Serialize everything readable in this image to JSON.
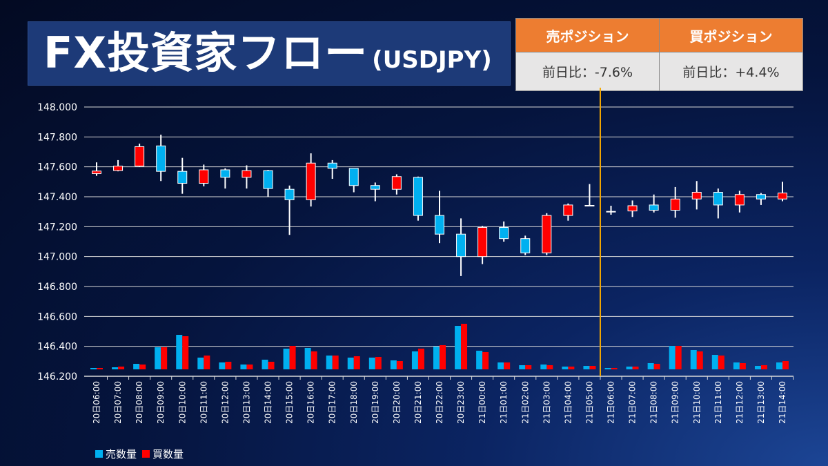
{
  "title": {
    "main": "FX投資家フロー",
    "sub": "(USDJPY)"
  },
  "position_table": {
    "sell": {
      "header": "売ポジション",
      "value": "前日比：-7.6%"
    },
    "buy": {
      "header": "買ポジション",
      "value": "前日比：+4.4%"
    }
  },
  "colors": {
    "up": "#ff0000",
    "down": "#00b0f0",
    "sell_volume": "#00b0f0",
    "buy_volume": "#ff0000",
    "divider": "#f5a800",
    "header": "#ed7d31"
  },
  "chart_data": {
    "type": "candlestick",
    "ylim": [
      146.2,
      148.0
    ],
    "yticks": [
      "148.000",
      "147.800",
      "147.600",
      "147.400",
      "147.200",
      "147.000",
      "146.800",
      "146.600",
      "146.400",
      "146.200"
    ],
    "grid": true,
    "divider_between": [
      "21日05:00",
      "21日06:00"
    ],
    "categories": [
      "20日06:00",
      "20日07:00",
      "20日08:00",
      "20日09:00",
      "20日10:00",
      "20日11:00",
      "20日12:00",
      "20日13:00",
      "20日14:00",
      "20日15:00",
      "20日16:00",
      "20日17:00",
      "20日18:00",
      "20日19:00",
      "20日20:00",
      "20日21:00",
      "20日22:00",
      "20日23:00",
      "21日00:00",
      "21日01:00",
      "21日02:00",
      "21日03:00",
      "21日04:00",
      "21日05:00",
      "21日06:00",
      "21日07:00",
      "21日08:00",
      "21日09:00",
      "21日10:00",
      "21日11:00",
      "21日12:00",
      "21日13:00",
      "21日14:00"
    ],
    "ohlc": [
      [
        147.555,
        147.63,
        147.54,
        147.572
      ],
      [
        147.575,
        147.645,
        147.57,
        147.605
      ],
      [
        147.605,
        147.755,
        147.6,
        147.735
      ],
      [
        147.74,
        147.815,
        147.505,
        147.57
      ],
      [
        147.57,
        147.66,
        147.42,
        147.49
      ],
      [
        147.49,
        147.615,
        147.47,
        147.58
      ],
      [
        147.58,
        147.59,
        147.455,
        147.53
      ],
      [
        147.53,
        147.61,
        147.455,
        147.575
      ],
      [
        147.575,
        147.58,
        147.4,
        147.455
      ],
      [
        147.45,
        147.475,
        147.145,
        147.38
      ],
      [
        147.38,
        147.69,
        147.335,
        147.625
      ],
      [
        147.625,
        147.645,
        147.52,
        147.59
      ],
      [
        147.59,
        147.59,
        147.43,
        147.475
      ],
      [
        147.475,
        147.495,
        147.37,
        147.45
      ],
      [
        147.45,
        147.55,
        147.415,
        147.535
      ],
      [
        147.53,
        147.535,
        147.24,
        147.275
      ],
      [
        147.275,
        147.44,
        147.09,
        147.15
      ],
      [
        147.15,
        147.255,
        146.87,
        147.0
      ],
      [
        147.0,
        147.205,
        146.95,
        147.195
      ],
      [
        147.195,
        147.235,
        147.1,
        147.12
      ],
      [
        147.12,
        147.14,
        147.01,
        147.025
      ],
      [
        147.025,
        147.29,
        147.01,
        147.275
      ],
      [
        147.275,
        147.355,
        147.24,
        147.345
      ],
      [
        147.34,
        147.485,
        147.34,
        147.34
      ],
      [
        147.3,
        147.34,
        147.28,
        147.3
      ],
      [
        147.305,
        147.375,
        147.265,
        147.34
      ],
      [
        147.345,
        147.415,
        147.295,
        147.31
      ],
      [
        147.31,
        147.465,
        147.26,
        147.385
      ],
      [
        147.385,
        147.505,
        147.315,
        147.43
      ],
      [
        147.43,
        147.455,
        147.255,
        147.345
      ],
      [
        147.345,
        147.44,
        147.295,
        147.415
      ],
      [
        147.415,
        147.425,
        147.345,
        147.385
      ],
      [
        147.385,
        147.5,
        147.37,
        147.425
      ]
    ],
    "volume_unit": "relative",
    "series": [
      {
        "name": "売数量",
        "values": [
          2,
          3,
          8,
          32,
          50,
          17,
          10,
          7,
          14,
          30,
          31,
          20,
          17,
          17,
          13,
          26,
          33,
          63,
          27,
          10,
          6,
          7,
          4,
          5,
          2,
          4,
          9,
          34,
          28,
          21,
          10,
          5,
          10
        ]
      },
      {
        "name": "買数量",
        "values": [
          2,
          4,
          7,
          32,
          48,
          20,
          11,
          7,
          11,
          34,
          26,
          20,
          19,
          18,
          12,
          30,
          35,
          66,
          25,
          10,
          6,
          6,
          4,
          5,
          2,
          4,
          8,
          34,
          26,
          20,
          9,
          6,
          12
        ]
      }
    ]
  }
}
